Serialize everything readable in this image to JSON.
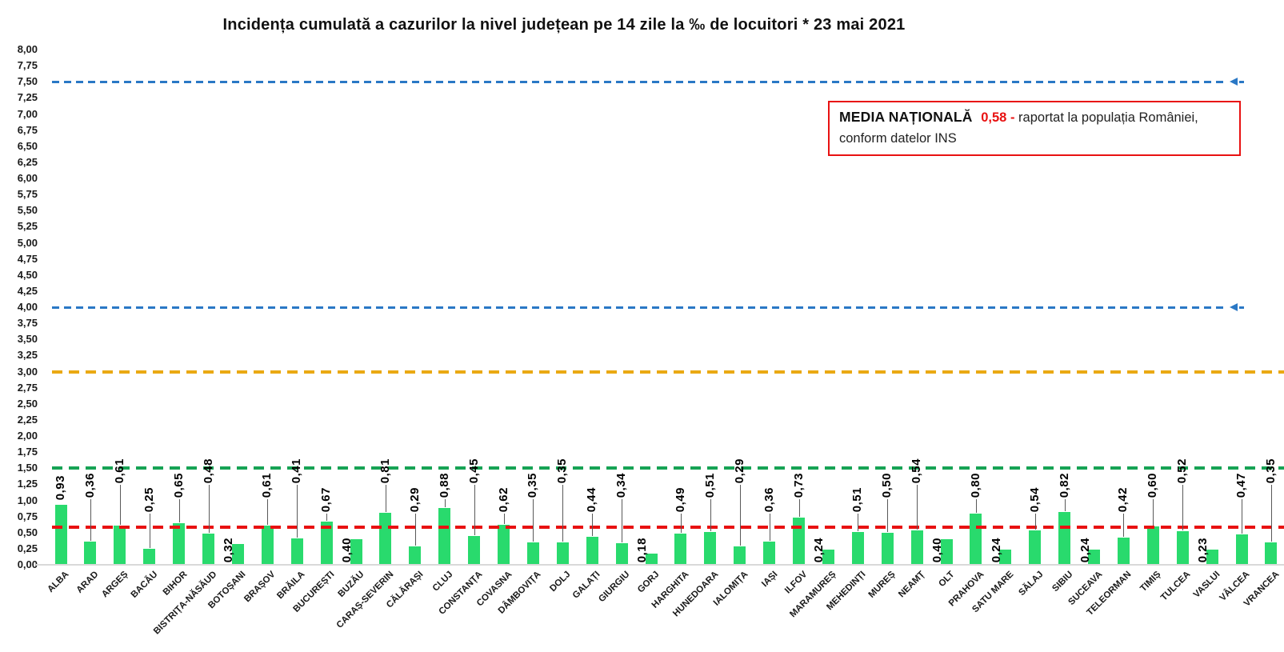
{
  "chart_data": {
    "type": "bar",
    "title": "Incidența cumulată a cazurilor la nivel județean pe 14 zile la ‰ de locuitori *  23 mai 2021",
    "categories": [
      "ALBA",
      "ARAD",
      "ARGEȘ",
      "BACĂU",
      "BIHOR",
      "BISTRIȚA-NĂSĂUD",
      "BOTOȘANI",
      "BRAȘOV",
      "BRĂILA",
      "BUCUREȘTI",
      "BUZĂU",
      "CARAȘ-SEVERIN",
      "CĂLĂRAȘI",
      "CLUJ",
      "CONSTANȚA",
      "COVASNA",
      "DÂMBOVIȚA",
      "DOLJ",
      "GALAȚI",
      "GIURGIU",
      "GORJ",
      "HARGHITA",
      "HUNEDOARA",
      "IALOMIȚA",
      "IAȘI",
      "ILFOV",
      "MARAMUREȘ",
      "MEHEDINȚI",
      "MUREȘ",
      "NEAMȚ",
      "OLT",
      "PRAHOVA",
      "SATU MARE",
      "SĂLAJ",
      "SIBIU",
      "SUCEAVA",
      "TELEORMAN",
      "TIMIȘ",
      "TULCEA",
      "VASLUI",
      "VÂLCEA",
      "VRANCEA"
    ],
    "values": [
      0.93,
      0.36,
      0.61,
      0.25,
      0.65,
      0.48,
      0.32,
      0.61,
      0.41,
      0.67,
      0.4,
      0.81,
      0.29,
      0.88,
      0.45,
      0.62,
      0.35,
      0.35,
      0.44,
      0.34,
      0.18,
      0.49,
      0.51,
      0.29,
      0.36,
      0.73,
      0.24,
      0.51,
      0.5,
      0.54,
      0.4,
      0.8,
      0.24,
      0.54,
      0.82,
      0.24,
      0.42,
      0.6,
      0.52,
      0.23,
      0.47,
      0.35
    ],
    "value_labels": [
      "0,93",
      "0,36",
      "0,61",
      "0,25",
      "0,65",
      "0,48",
      "0,32",
      "0,61",
      "0,41",
      "0,67",
      "0,40",
      "0,81",
      "0,29",
      "0,88",
      "0,45",
      "0,62",
      "0,35",
      "0,35",
      "0,44",
      "0,34",
      "0,18",
      "0,49",
      "0,51",
      "0,29",
      "0,36",
      "0,73",
      "0,24",
      "0,51",
      "0,50",
      "0,54",
      "0,40",
      "0,80",
      "0,24",
      "0,54",
      "0,82",
      "0,24",
      "0,42",
      "0,60",
      "0,52",
      "0,23",
      "0,47",
      "0,35"
    ],
    "yticks": [
      "8,00",
      "7,75",
      "7,50",
      "7,25",
      "7,00",
      "6,75",
      "6,50",
      "6,25",
      "6,00",
      "5,75",
      "5,50",
      "5,25",
      "5,00",
      "4,75",
      "4,50",
      "4,25",
      "4,00",
      "3,75",
      "3,50",
      "3,25",
      "3,00",
      "2,75",
      "2,50",
      "2,25",
      "2,00",
      "1,75",
      "1,50",
      "1,25",
      "1,00",
      "0,75",
      "0,50",
      "0,25",
      "0,00"
    ],
    "ylim": [
      0,
      8
    ],
    "ytick_step": 0.25,
    "grid": false,
    "legend": "none",
    "bar_color": "#29da6d",
    "reference_lines": [
      {
        "name": "threshold-7-50",
        "value": 7.5,
        "color": "#2a78c5",
        "style": "dashed",
        "thickness": 3,
        "arrow_end": true
      },
      {
        "name": "threshold-4-00",
        "value": 4.0,
        "color": "#2a78c5",
        "style": "dashed",
        "thickness": 3,
        "arrow_end": true
      },
      {
        "name": "threshold-3-00",
        "value": 3.0,
        "color": "#eaa913",
        "style": "dashed",
        "thickness": 4,
        "arrow_end": false
      },
      {
        "name": "threshold-1-50",
        "value": 1.5,
        "color": "#17a355",
        "style": "dashed",
        "thickness": 4,
        "arrow_end": false
      },
      {
        "name": "national-average-line",
        "value": 0.58,
        "color": "#e81111",
        "style": "dashed",
        "thickness": 4,
        "arrow_end": false
      }
    ],
    "annotation": {
      "label": "MEDIA NAȚIONALĂ",
      "value": "0,58 -",
      "text": "raportat la populația României, conform datelor INS",
      "value_color": "#e81111",
      "border_color": "#e81111"
    },
    "layout_hints": {
      "low_label_indices": [
        6,
        10,
        20,
        26,
        30,
        32,
        35,
        39
      ],
      "background": "#ffffff"
    }
  }
}
